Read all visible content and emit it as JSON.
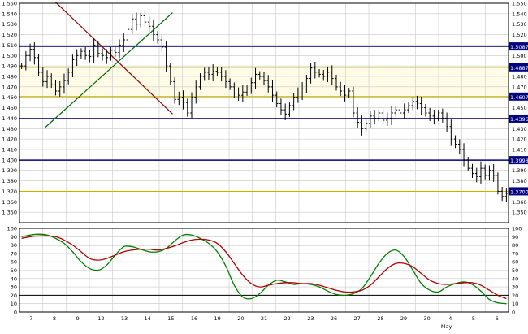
{
  "colors": {
    "background": "#ffffff",
    "grid": "#c8c8c8",
    "frame": "#000000",
    "price_bars": "#000000",
    "hline_blue": "#000080",
    "hline_yellow": "#c8b400",
    "trend_down": "#8b0000",
    "trend_up": "#006400",
    "stoch_k": "#008000",
    "stoch_d": "#b00000",
    "osc_levels": "#000000",
    "level_label_bg": "#000080",
    "level_label_text": "#ffffff",
    "band_highlight": "#fffbe6"
  },
  "chart_data": [
    {
      "type": "ohlc",
      "panel": "price",
      "ylim": [
        1.34,
        1.55
      ],
      "ytick_labels": [
        "1.350",
        "1.360",
        "1.370",
        "1.380",
        "1.390",
        "1.400",
        "1.410",
        "1.420",
        "1.430",
        "1.440",
        "1.450",
        "1.460",
        "1.470",
        "1.480",
        "1.490",
        "1.500",
        "1.510",
        "1.520",
        "1.530",
        "1.540",
        "1.550"
      ],
      "grid": true,
      "horizontal_levels": [
        {
          "value": 1.5087,
          "label": "1.5087",
          "color_key": "hline_blue"
        },
        {
          "value": 1.4887,
          "label": "1.4887",
          "color_key": "hline_yellow"
        },
        {
          "value": 1.4607,
          "label": "1.4607",
          "color_key": "hline_yellow"
        },
        {
          "value": 1.4396,
          "label": "1.4396",
          "color_key": "hline_blue"
        },
        {
          "value": 1.3998,
          "label": "1.3998",
          "color_key": "hline_blue"
        },
        {
          "value": 1.37,
          "label": "1.3700",
          "color_key": "hline_yellow"
        }
      ],
      "trendlines": [
        {
          "name": "",
          "color_key": "trend_down",
          "from": [
            8.5,
            1.551
          ],
          "to": [
            36.0,
            1.444
          ]
        },
        {
          "name": "",
          "color_key": "trend_up",
          "from": [
            6.0,
            1.431
          ],
          "to": [
            36.0,
            1.541
          ]
        }
      ],
      "series": [
        {
          "name": "",
          "closes": [
            1.49,
            1.5,
            1.506,
            1.498,
            1.484,
            1.475,
            1.48,
            1.472,
            1.466,
            1.47,
            1.476,
            1.484,
            1.496,
            1.5,
            1.504,
            1.5,
            1.499,
            1.51,
            1.502,
            1.5,
            1.498,
            1.505,
            1.503,
            1.51,
            1.515,
            1.525,
            1.535,
            1.53,
            1.538,
            1.532,
            1.528,
            1.52,
            1.515,
            1.508,
            1.49,
            1.475,
            1.458,
            1.46,
            1.455,
            1.445,
            1.46,
            1.47,
            1.48,
            1.484,
            1.482,
            1.485,
            1.484,
            1.48,
            1.475,
            1.47,
            1.464,
            1.462,
            1.465,
            1.468,
            1.474,
            1.482,
            1.48,
            1.476,
            1.47,
            1.462,
            1.454,
            1.448,
            1.444,
            1.452,
            1.46,
            1.464,
            1.468,
            1.478,
            1.488,
            1.484,
            1.482,
            1.48,
            1.484,
            1.478,
            1.47,
            1.466,
            1.462,
            1.466,
            1.445,
            1.436,
            1.43,
            1.435,
            1.442,
            1.44,
            1.445,
            1.438,
            1.44,
            1.445,
            1.448,
            1.445,
            1.448,
            1.452,
            1.456,
            1.454,
            1.45,
            1.445,
            1.442,
            1.44,
            1.445,
            1.44,
            1.432,
            1.42,
            1.415,
            1.41,
            1.4,
            1.392,
            1.387,
            1.384,
            1.392,
            1.385,
            1.39,
            1.385,
            1.37,
            1.365,
            1.368
          ]
        }
      ]
    },
    {
      "type": "line",
      "panel": "oscillator",
      "ylim": [
        0,
        100
      ],
      "ytick_labels": [
        "0",
        "10",
        "20",
        "30",
        "40",
        "50",
        "60",
        "70",
        "80",
        "90",
        "100"
      ],
      "reference_levels": [
        20,
        80
      ],
      "grid": true,
      "series": [
        {
          "name": "",
          "color_key": "stoch_k",
          "x": [
            0,
            2,
            4,
            6,
            8,
            10,
            12,
            14,
            16,
            18,
            20,
            22,
            24,
            26,
            28,
            30,
            32,
            34,
            36,
            38,
            40,
            42,
            44,
            46,
            48,
            50,
            52,
            54,
            56,
            58,
            60,
            62,
            64,
            66,
            68,
            70,
            72,
            74,
            76,
            78,
            80,
            82,
            84,
            86,
            88,
            90,
            92,
            94,
            96,
            98,
            100,
            102,
            104,
            106,
            108,
            110,
            112,
            114
          ],
          "values": [
            90,
            92,
            93,
            92,
            88,
            82,
            72,
            60,
            52,
            50,
            56,
            68,
            78,
            78,
            75,
            72,
            72,
            76,
            85,
            92,
            92,
            88,
            82,
            72,
            55,
            32,
            18,
            16,
            22,
            32,
            38,
            36,
            33,
            34,
            33,
            30,
            25,
            21,
            20,
            22,
            28,
            42,
            58,
            70,
            74,
            66,
            50,
            34,
            26,
            24,
            30,
            34,
            36,
            33,
            25,
            15,
            11,
            10
          ]
        },
        {
          "name": "",
          "color_key": "stoch_d",
          "x": [
            0,
            2,
            4,
            6,
            8,
            10,
            12,
            14,
            16,
            18,
            20,
            22,
            24,
            26,
            28,
            30,
            32,
            34,
            36,
            38,
            40,
            42,
            44,
            46,
            48,
            50,
            52,
            54,
            56,
            58,
            60,
            62,
            64,
            66,
            68,
            70,
            72,
            74,
            76,
            78,
            80,
            82,
            84,
            86,
            88,
            90,
            92,
            94,
            96,
            98,
            100,
            102,
            104,
            106,
            108,
            110,
            112,
            114
          ],
          "values": [
            88,
            90,
            91,
            91,
            90,
            86,
            80,
            72,
            64,
            62,
            64,
            68,
            72,
            74,
            75,
            75,
            74,
            76,
            79,
            83,
            86,
            87,
            86,
            82,
            72,
            58,
            44,
            34,
            30,
            32,
            34,
            35,
            35,
            34,
            34,
            32,
            29,
            26,
            24,
            24,
            26,
            32,
            42,
            52,
            58,
            58,
            54,
            46,
            38,
            34,
            33,
            34,
            35,
            35,
            32,
            26,
            20,
            16
          ]
        }
      ]
    }
  ],
  "x_axis": {
    "tick_labels": [
      "7",
      "8",
      "9",
      "12",
      "13",
      "14",
      "15",
      "16",
      "19",
      "20",
      "21",
      "22",
      "23",
      "26",
      "27",
      "28",
      "29",
      "30",
      "4",
      "5",
      "6"
    ],
    "month_label": "May"
  }
}
